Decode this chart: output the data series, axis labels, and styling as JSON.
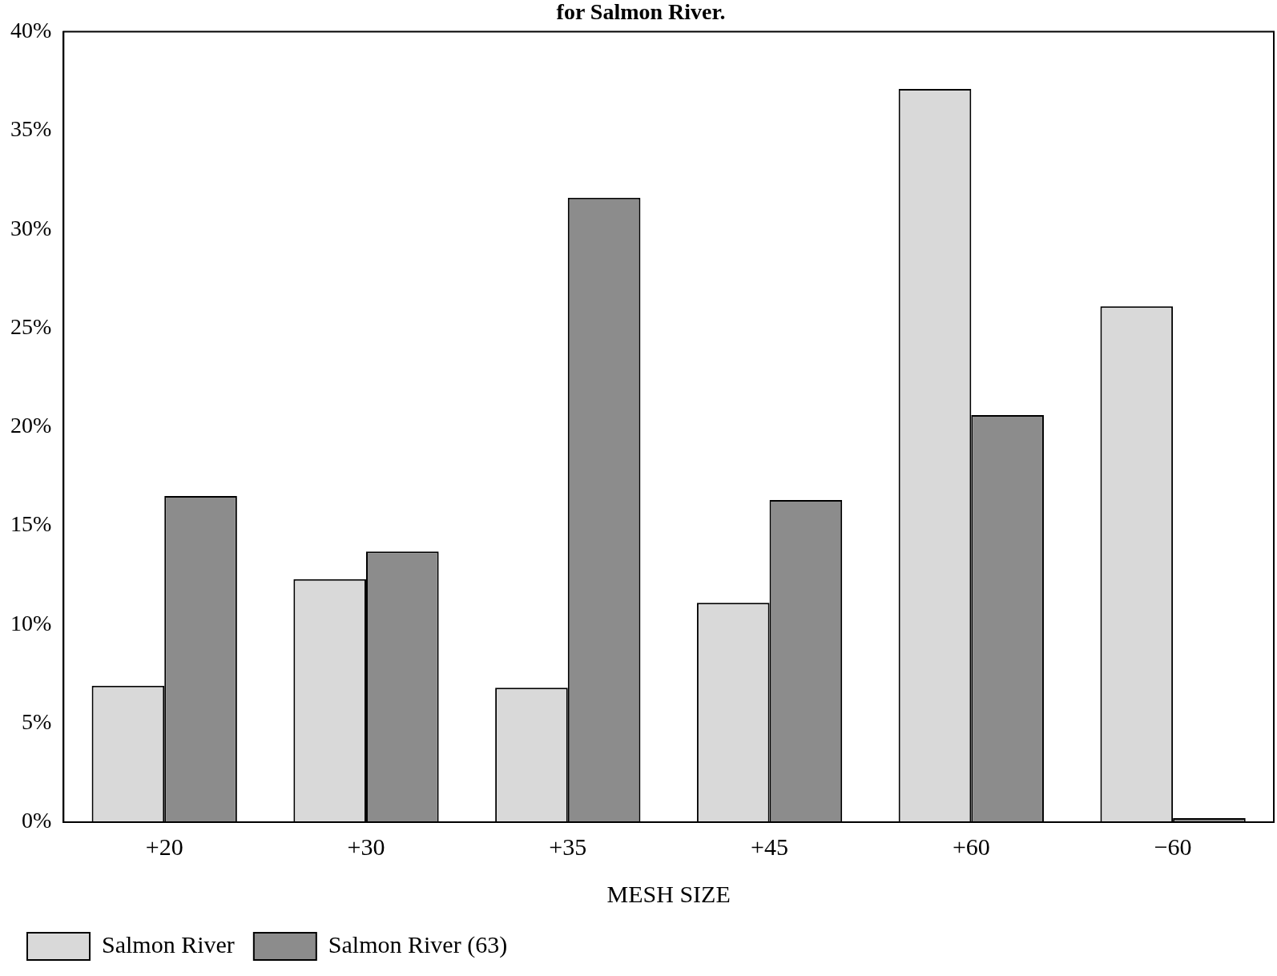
{
  "chart_data": {
    "type": "bar",
    "title": "for Salmon River.",
    "xlabel": "MESH SIZE",
    "categories": [
      "+20",
      "+30",
      "+35",
      "+45",
      "+60",
      "−60"
    ],
    "series": [
      {
        "name": "Salmon River",
        "color": "#d9d9d9",
        "values": [
          6.9,
          12.3,
          6.8,
          11.1,
          37.1,
          26.1
        ]
      },
      {
        "name": "Salmon River (63)",
        "color": "#8c8c8c",
        "values": [
          16.5,
          13.7,
          31.6,
          16.3,
          20.6,
          0.2
        ]
      }
    ],
    "ylim": [
      0,
      40
    ],
    "yticks": [
      {
        "value": 0,
        "label": "0%"
      },
      {
        "value": 5,
        "label": "5%"
      },
      {
        "value": 10,
        "label": "10%"
      },
      {
        "value": 15,
        "label": "15%"
      },
      {
        "value": 20,
        "label": "20%"
      },
      {
        "value": 25,
        "label": "25%"
      },
      {
        "value": 30,
        "label": "30%"
      },
      {
        "value": 35,
        "label": "35%"
      },
      {
        "value": 40,
        "label": "40%"
      }
    ],
    "grid": false,
    "legend": "bottom"
  }
}
